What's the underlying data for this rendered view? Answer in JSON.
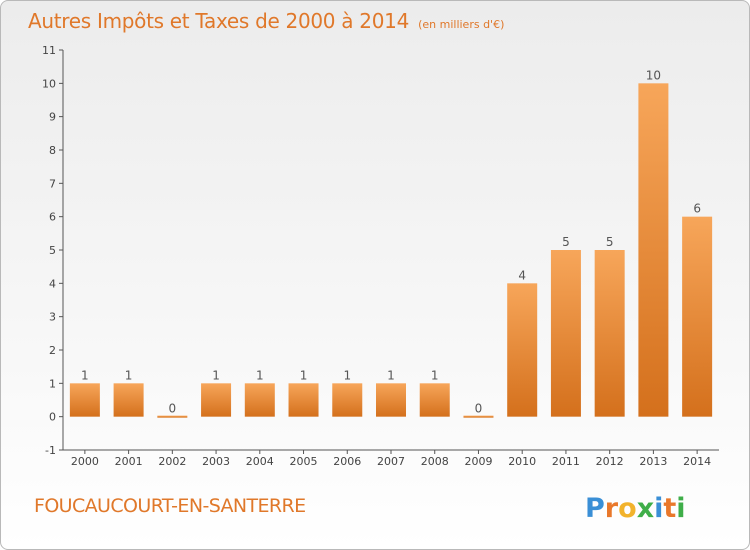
{
  "title": "Autres Impôts et Taxes de 2000 à 2014",
  "unit": "(en milliers d'€)",
  "commune": "FOUCAUCOURT-EN-SANTERRE",
  "logo_text": "Proxiti",
  "colors": {
    "title": "#e0782a",
    "bar_light": "#f7a65a",
    "bar_dark": "#d4701c",
    "axis": "#555555",
    "grid": "#cccccc"
  },
  "chart_data": {
    "type": "bar",
    "categories": [
      "2000",
      "2001",
      "2002",
      "2003",
      "2004",
      "2005",
      "2006",
      "2007",
      "2008",
      "2009",
      "2010",
      "2011",
      "2012",
      "2013",
      "2014"
    ],
    "values": [
      1,
      1,
      0,
      1,
      1,
      1,
      1,
      1,
      1,
      0,
      4,
      5,
      5,
      10,
      6
    ],
    "data_labels": [
      "1",
      "1",
      "0",
      "1",
      "1",
      "1",
      "1",
      "1",
      "1",
      "0",
      "4",
      "5",
      "5",
      "10",
      "6"
    ],
    "yticks": [
      "-1",
      "0",
      "1",
      "2",
      "3",
      "4",
      "5",
      "6",
      "7",
      "8",
      "9",
      "10",
      "11"
    ],
    "ylim": [
      -1,
      11
    ],
    "grid": false,
    "legend": "none"
  }
}
